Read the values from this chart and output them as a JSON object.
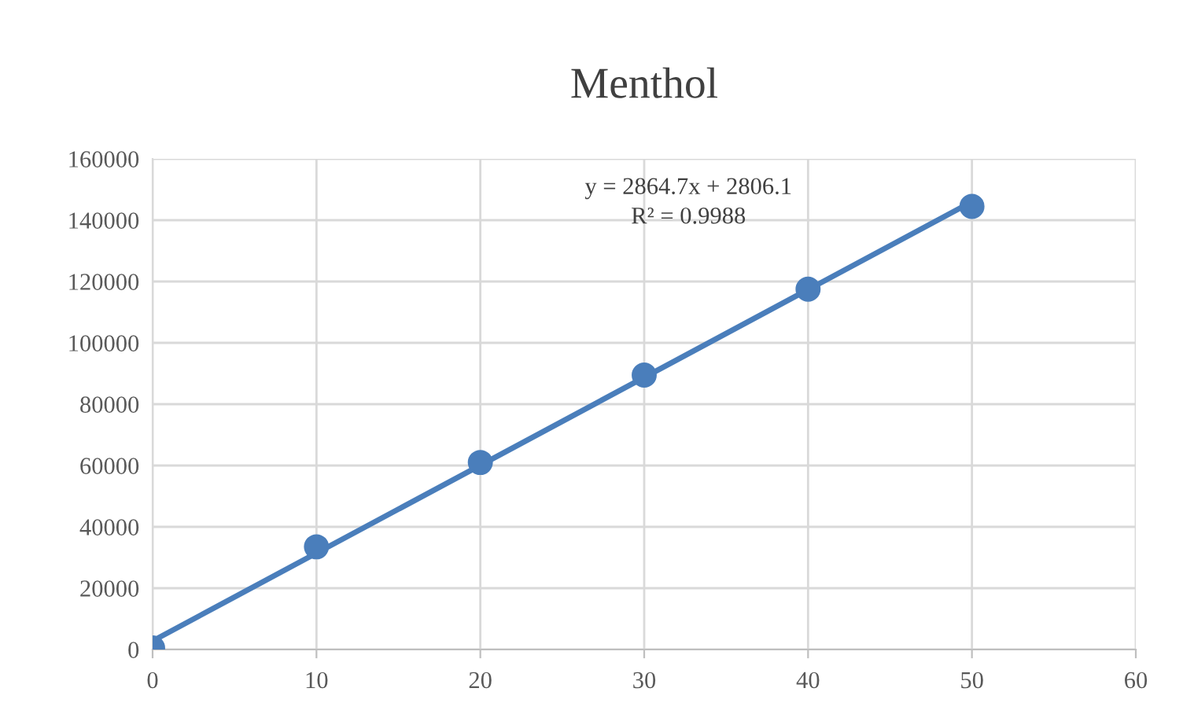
{
  "chart_data": {
    "type": "scatter",
    "title": "Menthol",
    "series": [
      {
        "color": "#4a7ebb",
        "marker": "circle",
        "x": [
          0,
          10,
          20,
          30,
          40,
          50
        ],
        "values": [
          500,
          33500,
          61000,
          89500,
          117500,
          144500
        ]
      },
      {
        "type": "line",
        "color": "#4a7ebb",
        "line_style": "solid",
        "x": [
          0,
          50
        ],
        "values": [
          2800,
          146000
        ]
      }
    ],
    "annotations": [
      "y = 2864.7x + 2806.1",
      "R² = 0.9988"
    ],
    "xlim": [
      0,
      60
    ],
    "xticks": [
      0,
      10,
      20,
      30,
      40,
      50,
      60
    ],
    "ylim": [
      0,
      160000
    ],
    "yticks": [
      0,
      20000,
      40000,
      60000,
      80000,
      100000,
      120000,
      140000,
      160000
    ],
    "grid": true,
    "legend": false
  }
}
